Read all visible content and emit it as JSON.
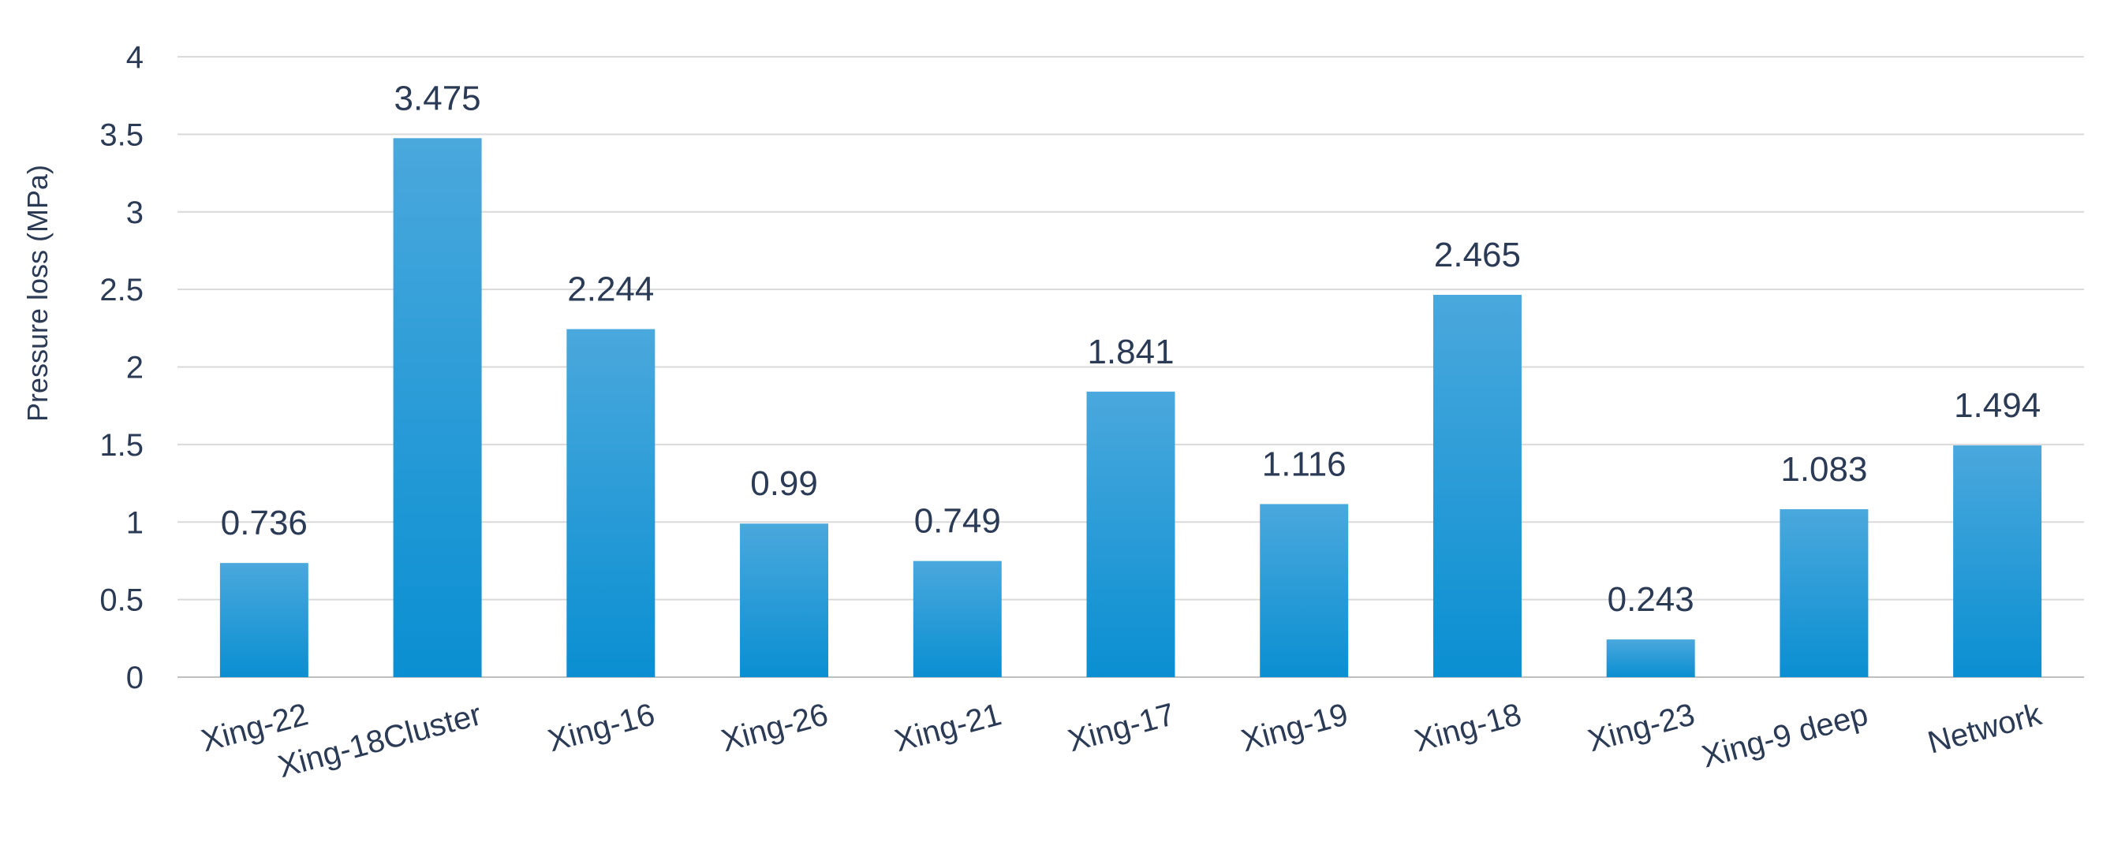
{
  "chart_data": {
    "type": "bar",
    "title": "",
    "xlabel": "",
    "ylabel": "Pressure loss (MPa)",
    "ylim": [
      0,
      4
    ],
    "yticks": [
      "0",
      "0.5",
      "1",
      "1.5",
      "2",
      "2.5",
      "3",
      "3.5",
      "4"
    ],
    "grid": true,
    "legend": "none",
    "bar_color_top": "#4aa8dc",
    "bar_color_bottom": "#0a8fd2",
    "categories": [
      "Xing-22",
      "Xing-18Cluster",
      "Xing-16",
      "Xing-26",
      "Xing-21",
      "Xing-17",
      "Xing-19",
      "Xing-18",
      "Xing-23",
      "Xing-9 deep",
      "Network"
    ],
    "values": [
      0.736,
      3.475,
      2.244,
      0.99,
      0.749,
      1.841,
      1.116,
      2.465,
      0.243,
      1.083,
      1.494
    ],
    "data_labels": [
      "0.736",
      "3.475",
      "2.244",
      "0.99",
      "0.749",
      "1.841",
      "1.116",
      "2.465",
      "0.243",
      "1.083",
      "1.494"
    ]
  }
}
